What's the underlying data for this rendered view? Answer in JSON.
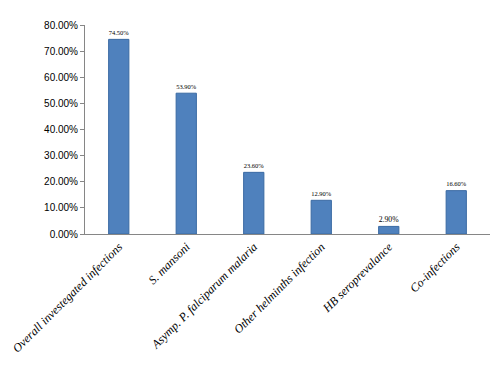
{
  "chart_data": {
    "type": "bar",
    "categories": [
      "Overall investegated infections",
      "S. mansoni",
      "Asymp. P. falciparum malaria",
      "Other helminths infection",
      "HB seroprevalance",
      "Co-infections"
    ],
    "values": [
      74.5,
      53.9,
      23.6,
      12.9,
      2.9,
      16.6
    ],
    "value_labels": [
      "74.50%",
      "53.90%",
      "23.60%",
      "12.90%",
      "2.90%",
      "16.60%"
    ],
    "data_labels": true,
    "color": "#4f81bd",
    "ylim": [
      0,
      80
    ],
    "yticks": [
      {
        "value": 0,
        "label": "0.00%"
      },
      {
        "value": 10,
        "label": "10.00%"
      },
      {
        "value": 20,
        "label": "20.00%"
      },
      {
        "value": 30,
        "label": "30.00%"
      },
      {
        "value": 40,
        "label": "40.00%"
      },
      {
        "value": 50,
        "label": "50.00%"
      },
      {
        "value": 60,
        "label": "60.00%"
      },
      {
        "value": 70,
        "label": "70.00%"
      },
      {
        "value": 80,
        "label": "80.00%"
      }
    ],
    "grid": false
  }
}
